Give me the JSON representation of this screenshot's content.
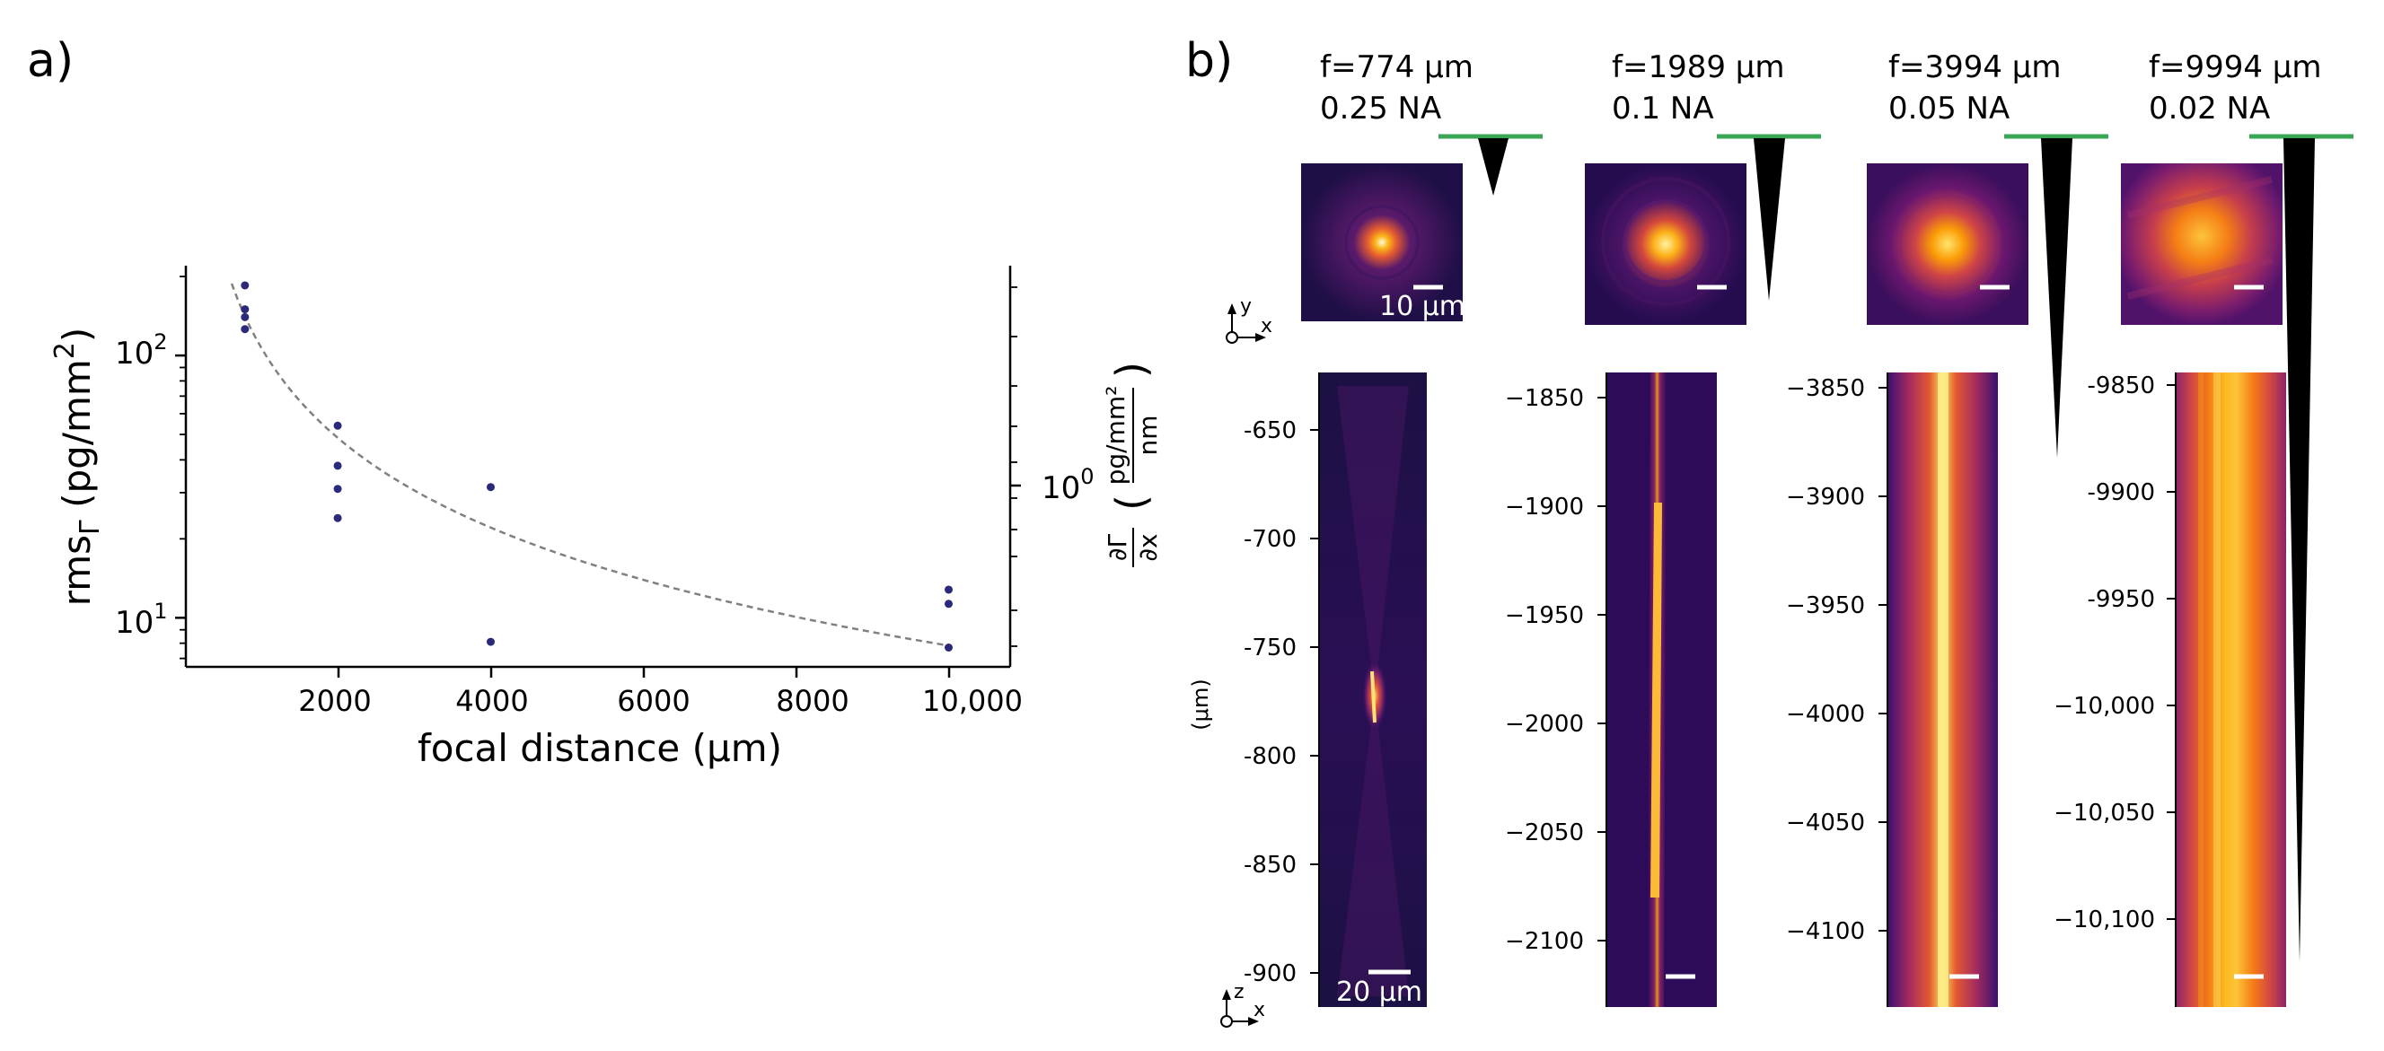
{
  "panel_a": {
    "label": "a)",
    "chart_data": {
      "type": "scatter",
      "xlabel": "focal distance (μm)",
      "ylabel": "rmsΓ (pg/mm²)",
      "ylabel_main": "rms",
      "ylabel_sub": "Γ",
      "ylabel_units": " (pg/mm",
      "ylabel_sup": "2",
      "ylabel_end": ")",
      "y2label_num": "∂Γ",
      "y2label_den": "∂x",
      "y2label_unit_num": "pg/mm²",
      "y2label_unit_den": "nm",
      "xlim": [
        0,
        10800
      ],
      "ylim_log": [
        6.5,
        220
      ],
      "xticks": [
        2000,
        4000,
        6000,
        8000,
        10000
      ],
      "xtick_labels": [
        "2000",
        "4000",
        "6000",
        "8000",
        "10,000"
      ],
      "ytick_labels": [
        {
          "base": "10",
          "exp": "2",
          "value": 100
        },
        {
          "base": "10",
          "exp": "1",
          "value": 10
        }
      ],
      "y2tick_label": {
        "base": "10",
        "exp": "0"
      },
      "points": [
        {
          "x": 774,
          "y": 185
        },
        {
          "x": 774,
          "y": 150
        },
        {
          "x": 774,
          "y": 140
        },
        {
          "x": 774,
          "y": 126
        },
        {
          "x": 1989,
          "y": 54
        },
        {
          "x": 1989,
          "y": 38
        },
        {
          "x": 1989,
          "y": 31
        },
        {
          "x": 1989,
          "y": 24
        },
        {
          "x": 3994,
          "y": 31.5
        },
        {
          "x": 3994,
          "y": 8.1
        },
        {
          "x": 9994,
          "y": 12.8
        },
        {
          "x": 9994,
          "y": 11.3
        },
        {
          "x": 9994,
          "y": 7.7
        }
      ],
      "fit_curve_note": "dashed trend line",
      "point_color": "#2b2a7a",
      "fit_color": "#808080"
    }
  },
  "panel_b": {
    "label": "b)",
    "scalebar_top_label": "10 μm",
    "scalebar_bottom_label": "20 μm",
    "axis_unit": "(μm)",
    "triad_top": {
      "up": "y",
      "right": "x"
    },
    "triad_bottom": {
      "up": "z",
      "right": "x"
    },
    "lenses": [
      {
        "focal": "f=774 μm",
        "na": "0.25 NA",
        "yticks": [
          "-650",
          "-700",
          "-750",
          "-800",
          "-850",
          "-900"
        ]
      },
      {
        "focal": "f=1989 μm",
        "na": "0.1 NA",
        "yticks": [
          "−1850",
          "−1900",
          "−1950",
          "−2000",
          "−2050",
          "−2100"
        ]
      },
      {
        "focal": "f=3994 μm",
        "na": "0.05 NA",
        "yticks": [
          "−3850",
          "−3900",
          "−3950",
          "−4000",
          "−4050",
          "−4100"
        ]
      },
      {
        "focal": "f=9994 μm",
        "na": "0.02 NA",
        "yticks": [
          "-9850",
          "-9900",
          "-9950",
          "−10,000",
          "−10,050",
          "−10,100"
        ]
      }
    ],
    "colors": {
      "lens_line": "#3aa655",
      "cone": "#000000",
      "bg_dark": "#1e0f46"
    }
  }
}
